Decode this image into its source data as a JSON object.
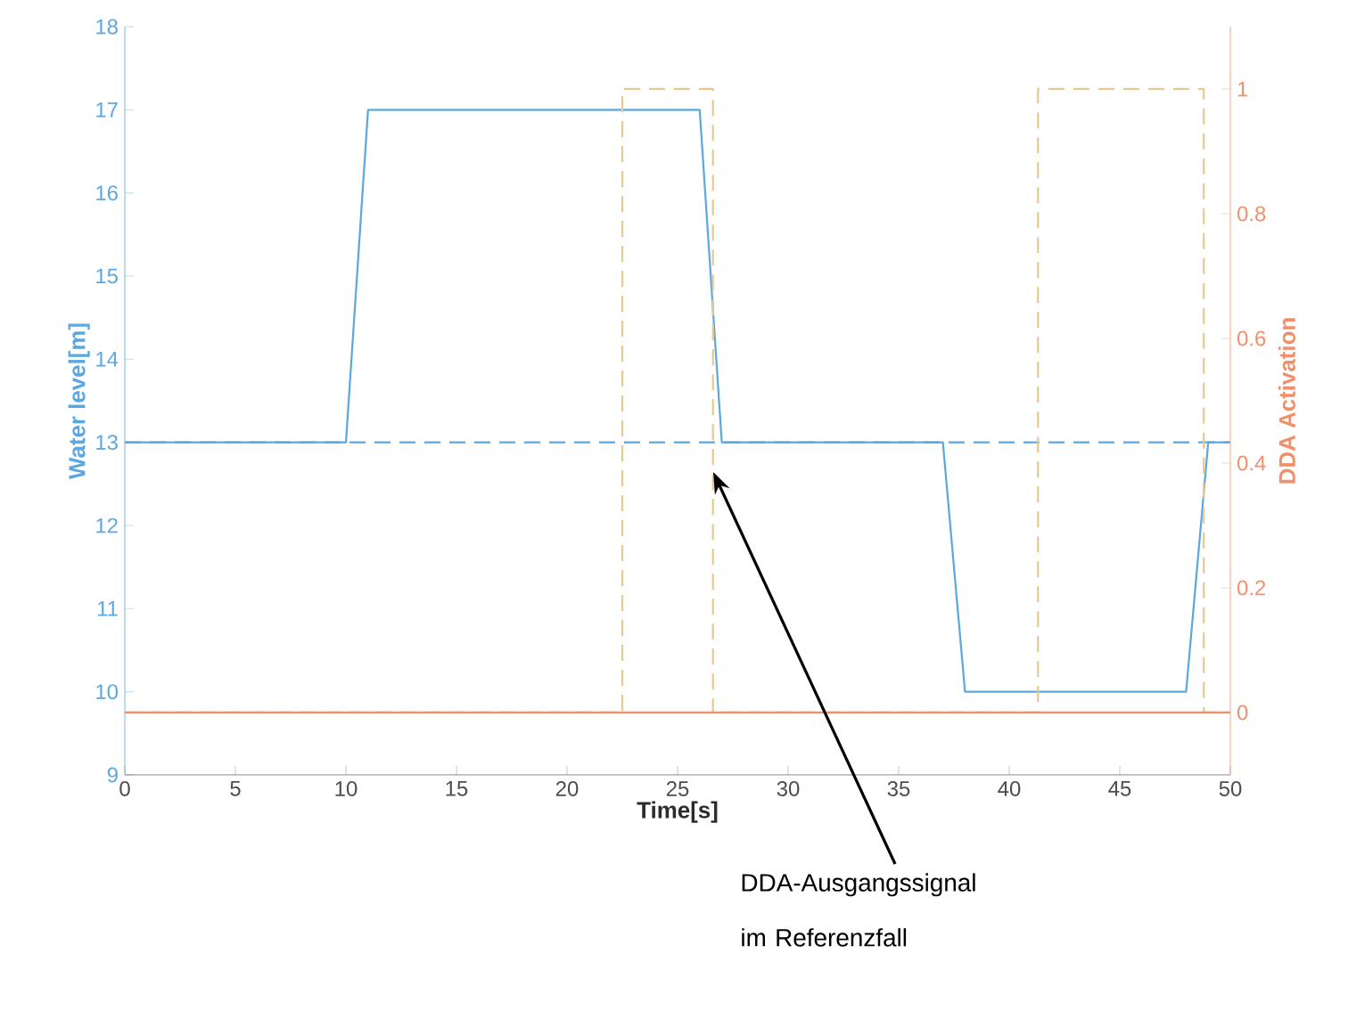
{
  "chart_data": {
    "type": "line",
    "xlabel": "Time[s]",
    "ylabel": "Water level[m]",
    "y2label": "DDA Activation",
    "xlim": [
      0,
      50
    ],
    "xticks": [
      0,
      5,
      10,
      15,
      20,
      25,
      30,
      35,
      40,
      45,
      50
    ],
    "ylim": [
      9,
      18
    ],
    "yticks": [
      9,
      10,
      11,
      12,
      13,
      14,
      15,
      16,
      17,
      18
    ],
    "y2lim": [
      -0.1,
      1.1
    ],
    "y2ticks": [
      0,
      0.2,
      0.4,
      0.6,
      0.8,
      1
    ],
    "series": [
      {
        "color": "#5ba8e0",
        "line_style": "solid",
        "x": [
          0,
          10,
          11,
          26,
          27,
          37,
          38,
          48,
          49,
          50
        ],
        "values": [
          13,
          13,
          17,
          17,
          13,
          13,
          10,
          10,
          13,
          13
        ]
      },
      {
        "color": "#5ba8e0",
        "line_style": "dashed",
        "x": [
          0,
          50
        ],
        "values": [
          13,
          13
        ]
      },
      {
        "color": "#e8c890",
        "line_style": "dashed",
        "axis": "y2",
        "x": [
          0,
          22.5,
          22.5,
          26.6,
          26.6,
          41.3,
          41.3,
          48.8,
          48.8,
          50
        ],
        "values": [
          0,
          0,
          1,
          1,
          0,
          0,
          1,
          1,
          0,
          0
        ]
      },
      {
        "color": "#f0906a",
        "line_style": "solid",
        "axis": "y2",
        "x": [
          0,
          50
        ],
        "values": [
          0,
          0
        ]
      }
    ],
    "annotations": [
      "DDA-Ausgangssignal im Referenzfall"
    ]
  }
}
